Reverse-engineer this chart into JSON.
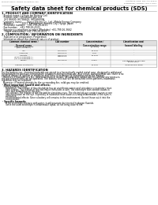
{
  "title": "Safety data sheet for chemical products (SDS)",
  "header_left": "Product Name: Lithium Ion Battery Cell",
  "header_right_line1": "Substance Code: SRC-A01-00010",
  "header_right_line2": "Established / Revision: Dec.7.2010",
  "section1_title": "1. PRODUCT AND COMPANY IDENTIFICATION",
  "section1_lines": [
    " · Product name: Lithium Ion Battery Cell",
    " · Product code: Cylindrical-type cell",
    "    IH1 86600, IH1 86600, IH4 86600A",
    " · Company name:       Sanyo Electric Co., Ltd., Mobile Energy Company",
    " · Address:            2001  Kamikamari, Sumoto City, Hyogo, Japan",
    " · Telephone number:   +81-799-26-4111",
    " · Fax number:   +81-799-26-4121",
    " · Emergency telephone number (Weekday) +81-799-26-3662",
    "    (Night and holiday) +81-799-26-4101"
  ],
  "section2_title": "2. COMPOSITION / INFORMATION ON INGREDIENTS",
  "section2_intro": " · Substance or preparation: Preparation",
  "section2_sub": " · Information about the chemical nature of product:",
  "table_col_headers": [
    "Common chemical name /\nGeneral name",
    "CAS number",
    "Concentration /\nConcentration range",
    "Classification and\nhazard labeling"
  ],
  "table_rows": [
    [
      "Lithium cobalt oxide\n(LiMn-Co-PBO4)",
      "-",
      "[30-40%]",
      "-"
    ],
    [
      "Iron",
      "7439-89-6",
      "15-25%",
      "-"
    ],
    [
      "Aluminum",
      "7429-90-5",
      "2-6%",
      "-"
    ],
    [
      "Graphite\n(Rock-in graphite-1)\n(Air-film graphite-1)",
      "7782-42-5\n7782-44-2",
      "10-20%",
      "-"
    ],
    [
      "Copper",
      "7440-50-8",
      "5-15%",
      "Sensitization of the skin\ngroup No.2"
    ],
    [
      "Organic electrolyte",
      "-",
      "10-20%",
      "Inflammable liquid"
    ]
  ],
  "section3_title": "3. HAZARDS IDENTIFICATION",
  "section3_body": [
    "For the battery can, chemical materials are stored in a hermetically sealed metal case, designed to withstand",
    "temperatures in pressure-temperature conditions during normal use. As a result, during normal use, there is no",
    "physical danger of ignition or explosion and there is no danger of hazardous materials leakage.",
    "  However, if exposed to a fire, added mechanical shocks, decomposed, added electric without any measure,",
    "the gas release vent can be operated. The battery cell case will be breached of fire-patterns, hazardous",
    "materials may be released.",
    "  Moreover, if heated strongly by the surrounding fire, solid gas may be emitted."
  ],
  "section3_bullet1": " · Most important hazard and effects:",
  "section3_human": "   Human health effects:",
  "section3_sub_effects": [
    "      Inhalation: The release of the electrolyte has an anesthesia action and stimulates a respiratory tract.",
    "      Skin contact: The release of the electrolyte stimulates a skin. The electrolyte skin contact causes a",
    "      sore and stimulation on the skin.",
    "      Eye contact: The release of the electrolyte stimulates eyes. The electrolyte eye contact causes a sore",
    "      and stimulation on the eye. Especially, a substance that causes a strong inflammation of the eyes is",
    "      contained.",
    "      Environmental effects: Since a battery cell remains in the environment, do not throw out it into the",
    "      environment."
  ],
  "section3_bullet2": " · Specific hazards:",
  "section3_specific": [
    "      If the electrolyte contacts with water, it will generate detrimental hydrogen fluoride.",
    "      Since the used electrolyte is inflammable liquid, do not bring close to fire."
  ],
  "bg_color": "#ffffff",
  "text_color": "#000000",
  "gray_text": "#666666",
  "table_border_color": "#999999",
  "table_header_bg": "#e0e0e0"
}
